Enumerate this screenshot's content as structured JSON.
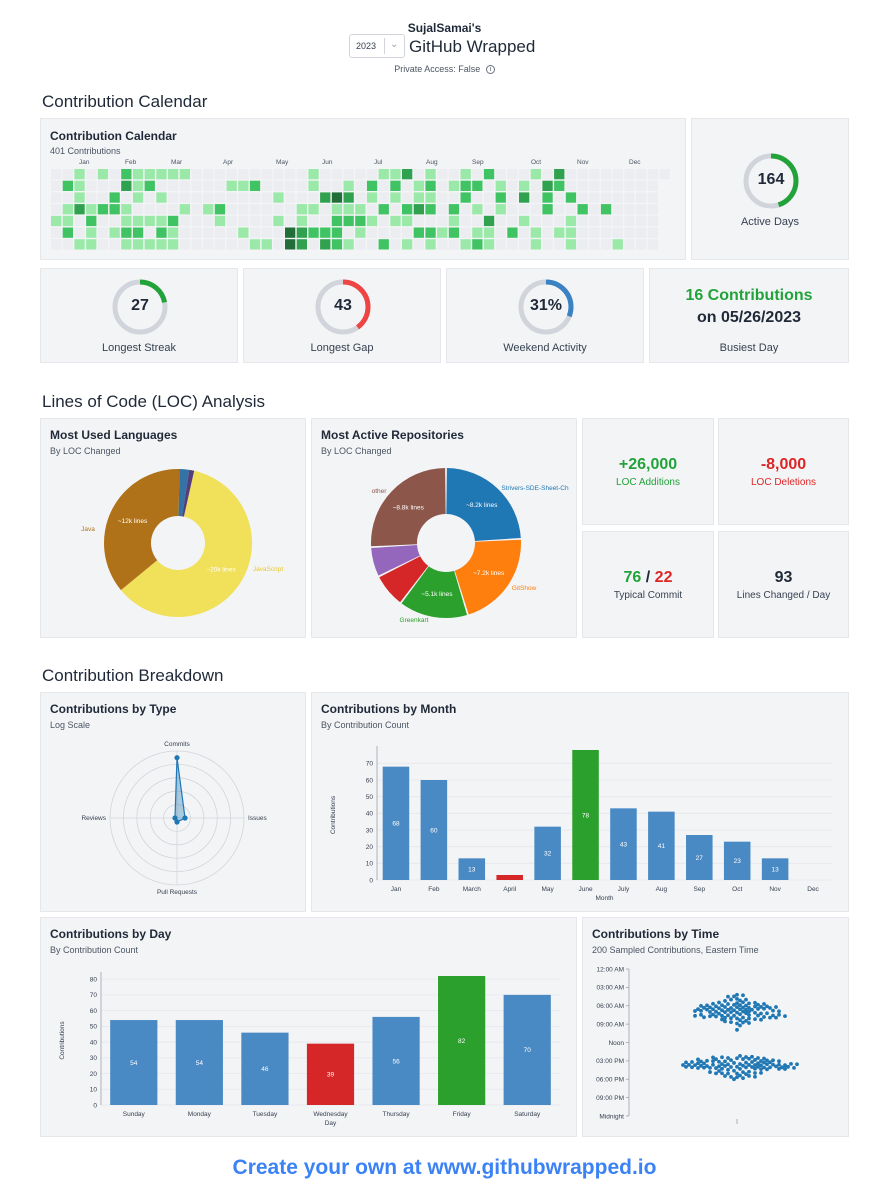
{
  "header": {
    "username": "SujalSamai's",
    "title": "GitHub Wrapped",
    "year": "2023",
    "private_access": "Private Access: False",
    "info_icon": "info-icon"
  },
  "sections": {
    "calendar": "Contribution Calendar",
    "loc": "Lines of Code (LOC) Analysis",
    "breakdown": "Contribution Breakdown"
  },
  "calendar": {
    "title": "Contribution Calendar",
    "subtitle": "401 Contributions",
    "months": [
      "Jan",
      "Feb",
      "Mar",
      "Apr",
      "May",
      "Jun",
      "Jul",
      "Aug",
      "Sep",
      "Oct",
      "Nov",
      "Dec"
    ],
    "colors": [
      "#ebedf0",
      "#9be9a8",
      "#40c463",
      "#30a14e",
      "#216e39"
    ]
  },
  "stats": {
    "active_days": {
      "value": "164",
      "label": "Active Days",
      "fraction": 0.45,
      "color": "#22a33a"
    },
    "longest_streak": {
      "value": "27",
      "label": "Longest Streak",
      "fraction": 0.22,
      "color": "#22a33a"
    },
    "longest_gap": {
      "value": "43",
      "label": "Longest Gap",
      "fraction": 0.4,
      "color": "#ef4444"
    },
    "weekend_activity": {
      "value": "31%",
      "label": "Weekend Activity",
      "fraction": 0.31,
      "color": "#3b82c4"
    },
    "busiest_day": {
      "line1": "16 Contributions",
      "line2": "on 05/26/2023",
      "label": "Busiest Day"
    }
  },
  "loc": {
    "languages": {
      "title": "Most Used Languages",
      "subtitle": "By LOC Changed",
      "slices": [
        {
          "name": "JavaScript",
          "value": 20,
          "label": "~20k lines",
          "color": "#f0e05a",
          "text_color": "#e8c92c"
        },
        {
          "name": "Java",
          "value": 12,
          "label": "~12k lines",
          "color": "#b07219",
          "text_color": "#b07219"
        },
        {
          "name": "",
          "value": 0.7,
          "label": "",
          "color": "#3572a5"
        },
        {
          "name": "",
          "value": 0.35,
          "label": "",
          "color": "#563d7c"
        }
      ]
    },
    "repos": {
      "title": "Most Active Repositories",
      "subtitle": "By LOC Changed",
      "slices": [
        {
          "name": "Strivers-SDE-Sheet-Ch",
          "value": 8.2,
          "label": "~8.2k lines",
          "color": "#1f77b4"
        },
        {
          "name": "GitShow",
          "value": 7.2,
          "label": "~7.2k lines",
          "color": "#ff7f0e"
        },
        {
          "name": "Greenkart",
          "value": 5.1,
          "label": "~5.1k lines",
          "color": "#2ca02c"
        },
        {
          "name": "",
          "value": 2.5,
          "label": "",
          "color": "#d62728"
        },
        {
          "name": "",
          "value": 2.2,
          "label": "",
          "color": "#9467bd"
        },
        {
          "name": "other",
          "value": 8.8,
          "label": "~8.8k lines",
          "color": "#8c564b"
        }
      ]
    },
    "additions": {
      "value": "+26,000",
      "label": "LOC Additions"
    },
    "deletions": {
      "value": "-8,000",
      "label": "LOC Deletions"
    },
    "typical_commit": {
      "add": "76",
      "sep": "/",
      "del": "22",
      "label": "Typical Commit"
    },
    "lines_per_day": {
      "value": "93",
      "label": "Lines Changed / Day"
    }
  },
  "chart_data": [
    {
      "type": "radar",
      "title": "Contributions by Type",
      "subtitle": "Log Scale",
      "axes": [
        "Commits",
        "Issues",
        "Pull Requests",
        "Reviews"
      ],
      "values": [
        0.9,
        0.12,
        0.06,
        0.03
      ]
    },
    {
      "type": "bar",
      "title": "Contributions by Month",
      "subtitle": "By Contribution Count",
      "categories": [
        "Jan",
        "Feb",
        "March",
        "April",
        "May",
        "June",
        "July",
        "Aug",
        "Sep",
        "Oct",
        "Nov",
        "Dec"
      ],
      "values": [
        68,
        60,
        13,
        3,
        32,
        78,
        43,
        41,
        27,
        23,
        13,
        0
      ],
      "colors": [
        "#4a8ac4",
        "#4a8ac4",
        "#4a8ac4",
        "#d62728",
        "#4a8ac4",
        "#2ca02c",
        "#4a8ac4",
        "#4a8ac4",
        "#4a8ac4",
        "#4a8ac4",
        "#4a8ac4",
        "#4a8ac4"
      ],
      "xlabel": "Month",
      "ylabel": "Contributions",
      "ylim": [
        0,
        78
      ],
      "yticks": [
        0,
        10,
        20,
        30,
        40,
        50,
        60,
        70
      ]
    },
    {
      "type": "bar",
      "title": "Contributions by Day",
      "subtitle": "By Contribution Count",
      "categories": [
        "Sunday",
        "Monday",
        "Tuesday",
        "Wednesday",
        "Thursday",
        "Friday",
        "Saturday"
      ],
      "values": [
        54,
        54,
        46,
        39,
        56,
        82,
        70
      ],
      "colors": [
        "#4a8ac4",
        "#4a8ac4",
        "#4a8ac4",
        "#d62728",
        "#4a8ac4",
        "#2ca02c",
        "#4a8ac4"
      ],
      "xlabel": "Day",
      "ylabel": "Contributions",
      "ylim": [
        0,
        82
      ],
      "yticks": [
        0,
        10,
        20,
        30,
        40,
        50,
        60,
        70,
        80
      ]
    },
    {
      "type": "scatter",
      "title": "Contributions by Time",
      "subtitle": "200 Sampled Contributions, Eastern Time",
      "yticks": [
        "12:00 AM",
        "03:00 PM",
        "06:00 PM",
        "09:00 PM",
        "Midnight"
      ],
      "yticks_full": [
        "12:00 AM",
        "03:00 AM",
        "06:00 AM",
        "09:00 AM",
        "Noon",
        "03:00 PM",
        "06:00 PM",
        "09:00 PM",
        "Midnight"
      ],
      "cluster_hours": [
        [
          3.5,
          10.5
        ],
        [
          13.5,
          18.5
        ]
      ],
      "sample_count": 200
    }
  ],
  "footer": "Create your own at www.githubwrapped.io"
}
